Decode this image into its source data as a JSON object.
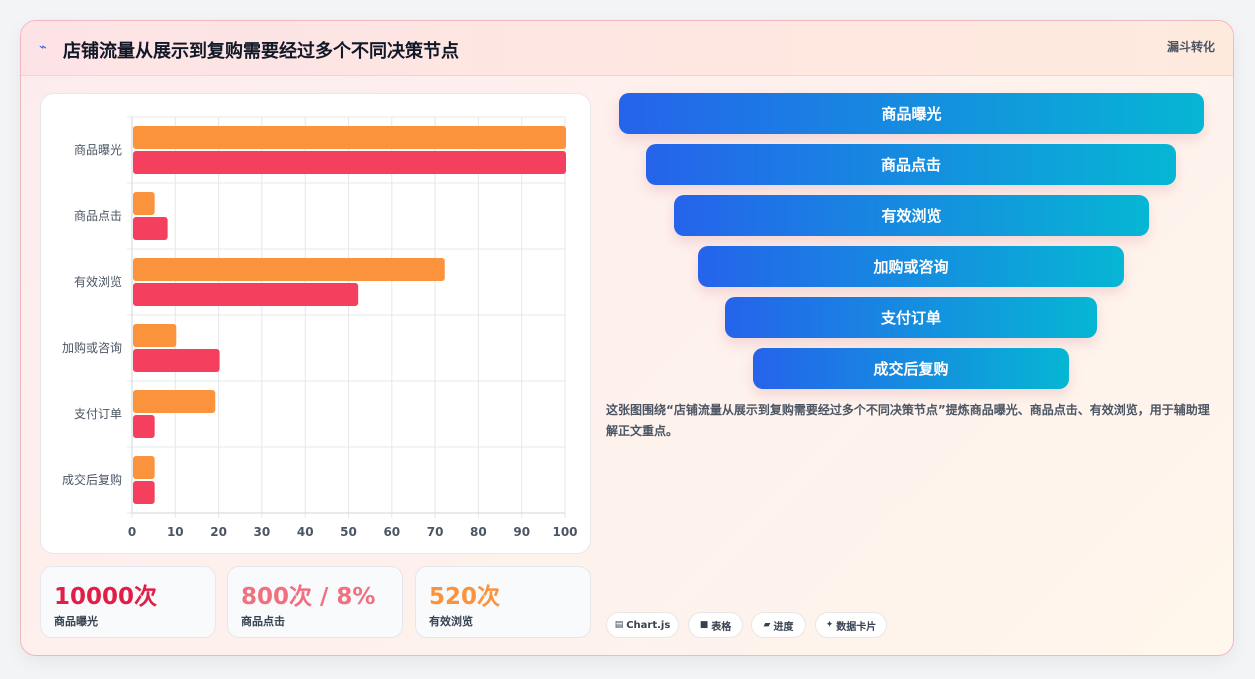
{
  "header": {
    "icon": "chart-line-icon",
    "title": "店铺流量从展示到复购需要经过多个不同决策节点",
    "badge": "漏斗转化"
  },
  "chart_data": {
    "type": "bar",
    "orientation": "horizontal",
    "categories": [
      "商品曝光",
      "商品点击",
      "有效浏览",
      "加购或咨询",
      "支付订单",
      "成交后复购"
    ],
    "series": [
      {
        "values": [
          100,
          5,
          72,
          10,
          19,
          5
        ],
        "color": "#fb923c"
      },
      {
        "values": [
          100,
          8,
          52,
          20,
          5,
          5
        ],
        "color": "#f43f5e"
      }
    ],
    "xlim": [
      0,
      100
    ],
    "xticks": [
      0,
      10,
      20,
      30,
      40,
      50,
      60,
      70,
      80,
      90,
      100
    ],
    "grid": true
  },
  "stats": [
    {
      "value": "10000次",
      "label": "商品曝光",
      "color": "#e11d48"
    },
    {
      "value": "800次 / 8%",
      "label": "商品点击",
      "color": "#f07080"
    },
    {
      "value": "520次",
      "label": "有效浏览",
      "color": "#fb923c"
    }
  ],
  "funnel": [
    "商品曝光",
    "商品点击",
    "有效浏览",
    "加购或咨询",
    "支付订单",
    "成交后复购"
  ],
  "description": "这张图围绕“店铺流量从展示到复购需要经过多个不同决策节点”提炼商品曝光、商品点击、有效浏览，用于辅助理解正文重点。",
  "chips": [
    {
      "icon": "chart-icon",
      "glyph": "▤",
      "label": "Chart.js"
    },
    {
      "icon": "table-icon",
      "glyph": "■",
      "label": "表格"
    },
    {
      "icon": "progress-icon",
      "glyph": "▰",
      "label": "进度"
    },
    {
      "icon": "sparkle-icon",
      "glyph": "✦",
      "label": "数据卡片"
    }
  ]
}
